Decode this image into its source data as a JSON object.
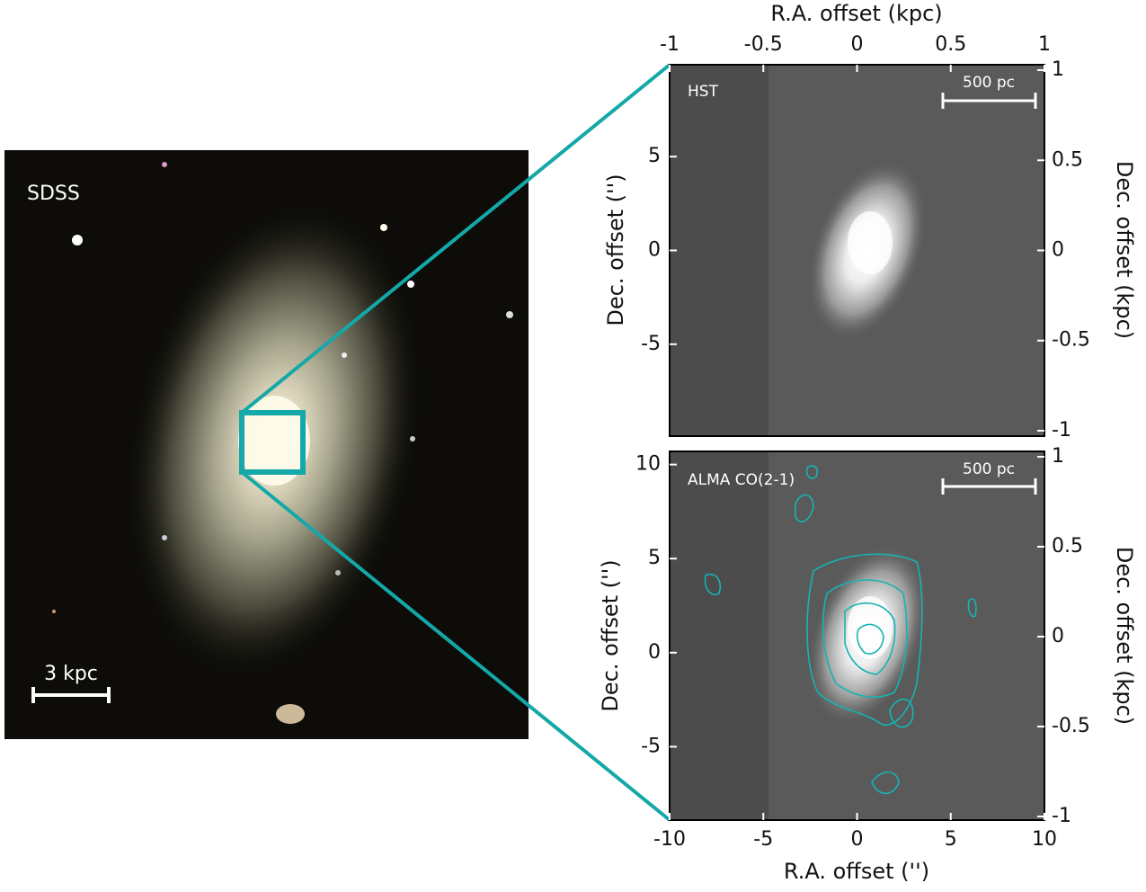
{
  "sdss": {
    "label": "SDSS",
    "scale_bar": "3 kpc"
  },
  "hst": {
    "label": "HST",
    "scale_bar": "500 pc",
    "top_axis": {
      "title": "R.A. offset (kpc)",
      "lim": [
        -1,
        1
      ],
      "ticks": [
        -1,
        -0.5,
        0,
        0.5,
        1
      ]
    },
    "left_axis": {
      "title": "Dec. offset ('')",
      "lim": [
        -9.9,
        9.9
      ],
      "ticks": [
        -5,
        0,
        5
      ]
    },
    "right_axis": {
      "title": "Dec. offset (kpc)",
      "lim": [
        -1.03,
        1.03
      ],
      "ticks": [
        -1,
        -0.5,
        0,
        0.5,
        1
      ]
    }
  },
  "alma": {
    "label": "ALMA CO(2-1)",
    "scale_bar": "500 pc",
    "bottom_axis": {
      "title": "R.A. offset ('')",
      "lim": [
        -10,
        10
      ],
      "ticks": [
        -10,
        -5,
        0,
        5,
        10
      ]
    },
    "left_axis": {
      "title": "Dec. offset ('')",
      "lim": [
        -8.9,
        10.7
      ],
      "ticks": [
        -5,
        0,
        5,
        10
      ]
    },
    "right_axis": {
      "title": "Dec. offset (kpc)",
      "lim": [
        -1.02,
        1.03
      ],
      "ticks": [
        -1,
        -0.5,
        0,
        0.5,
        1
      ]
    }
  }
}
